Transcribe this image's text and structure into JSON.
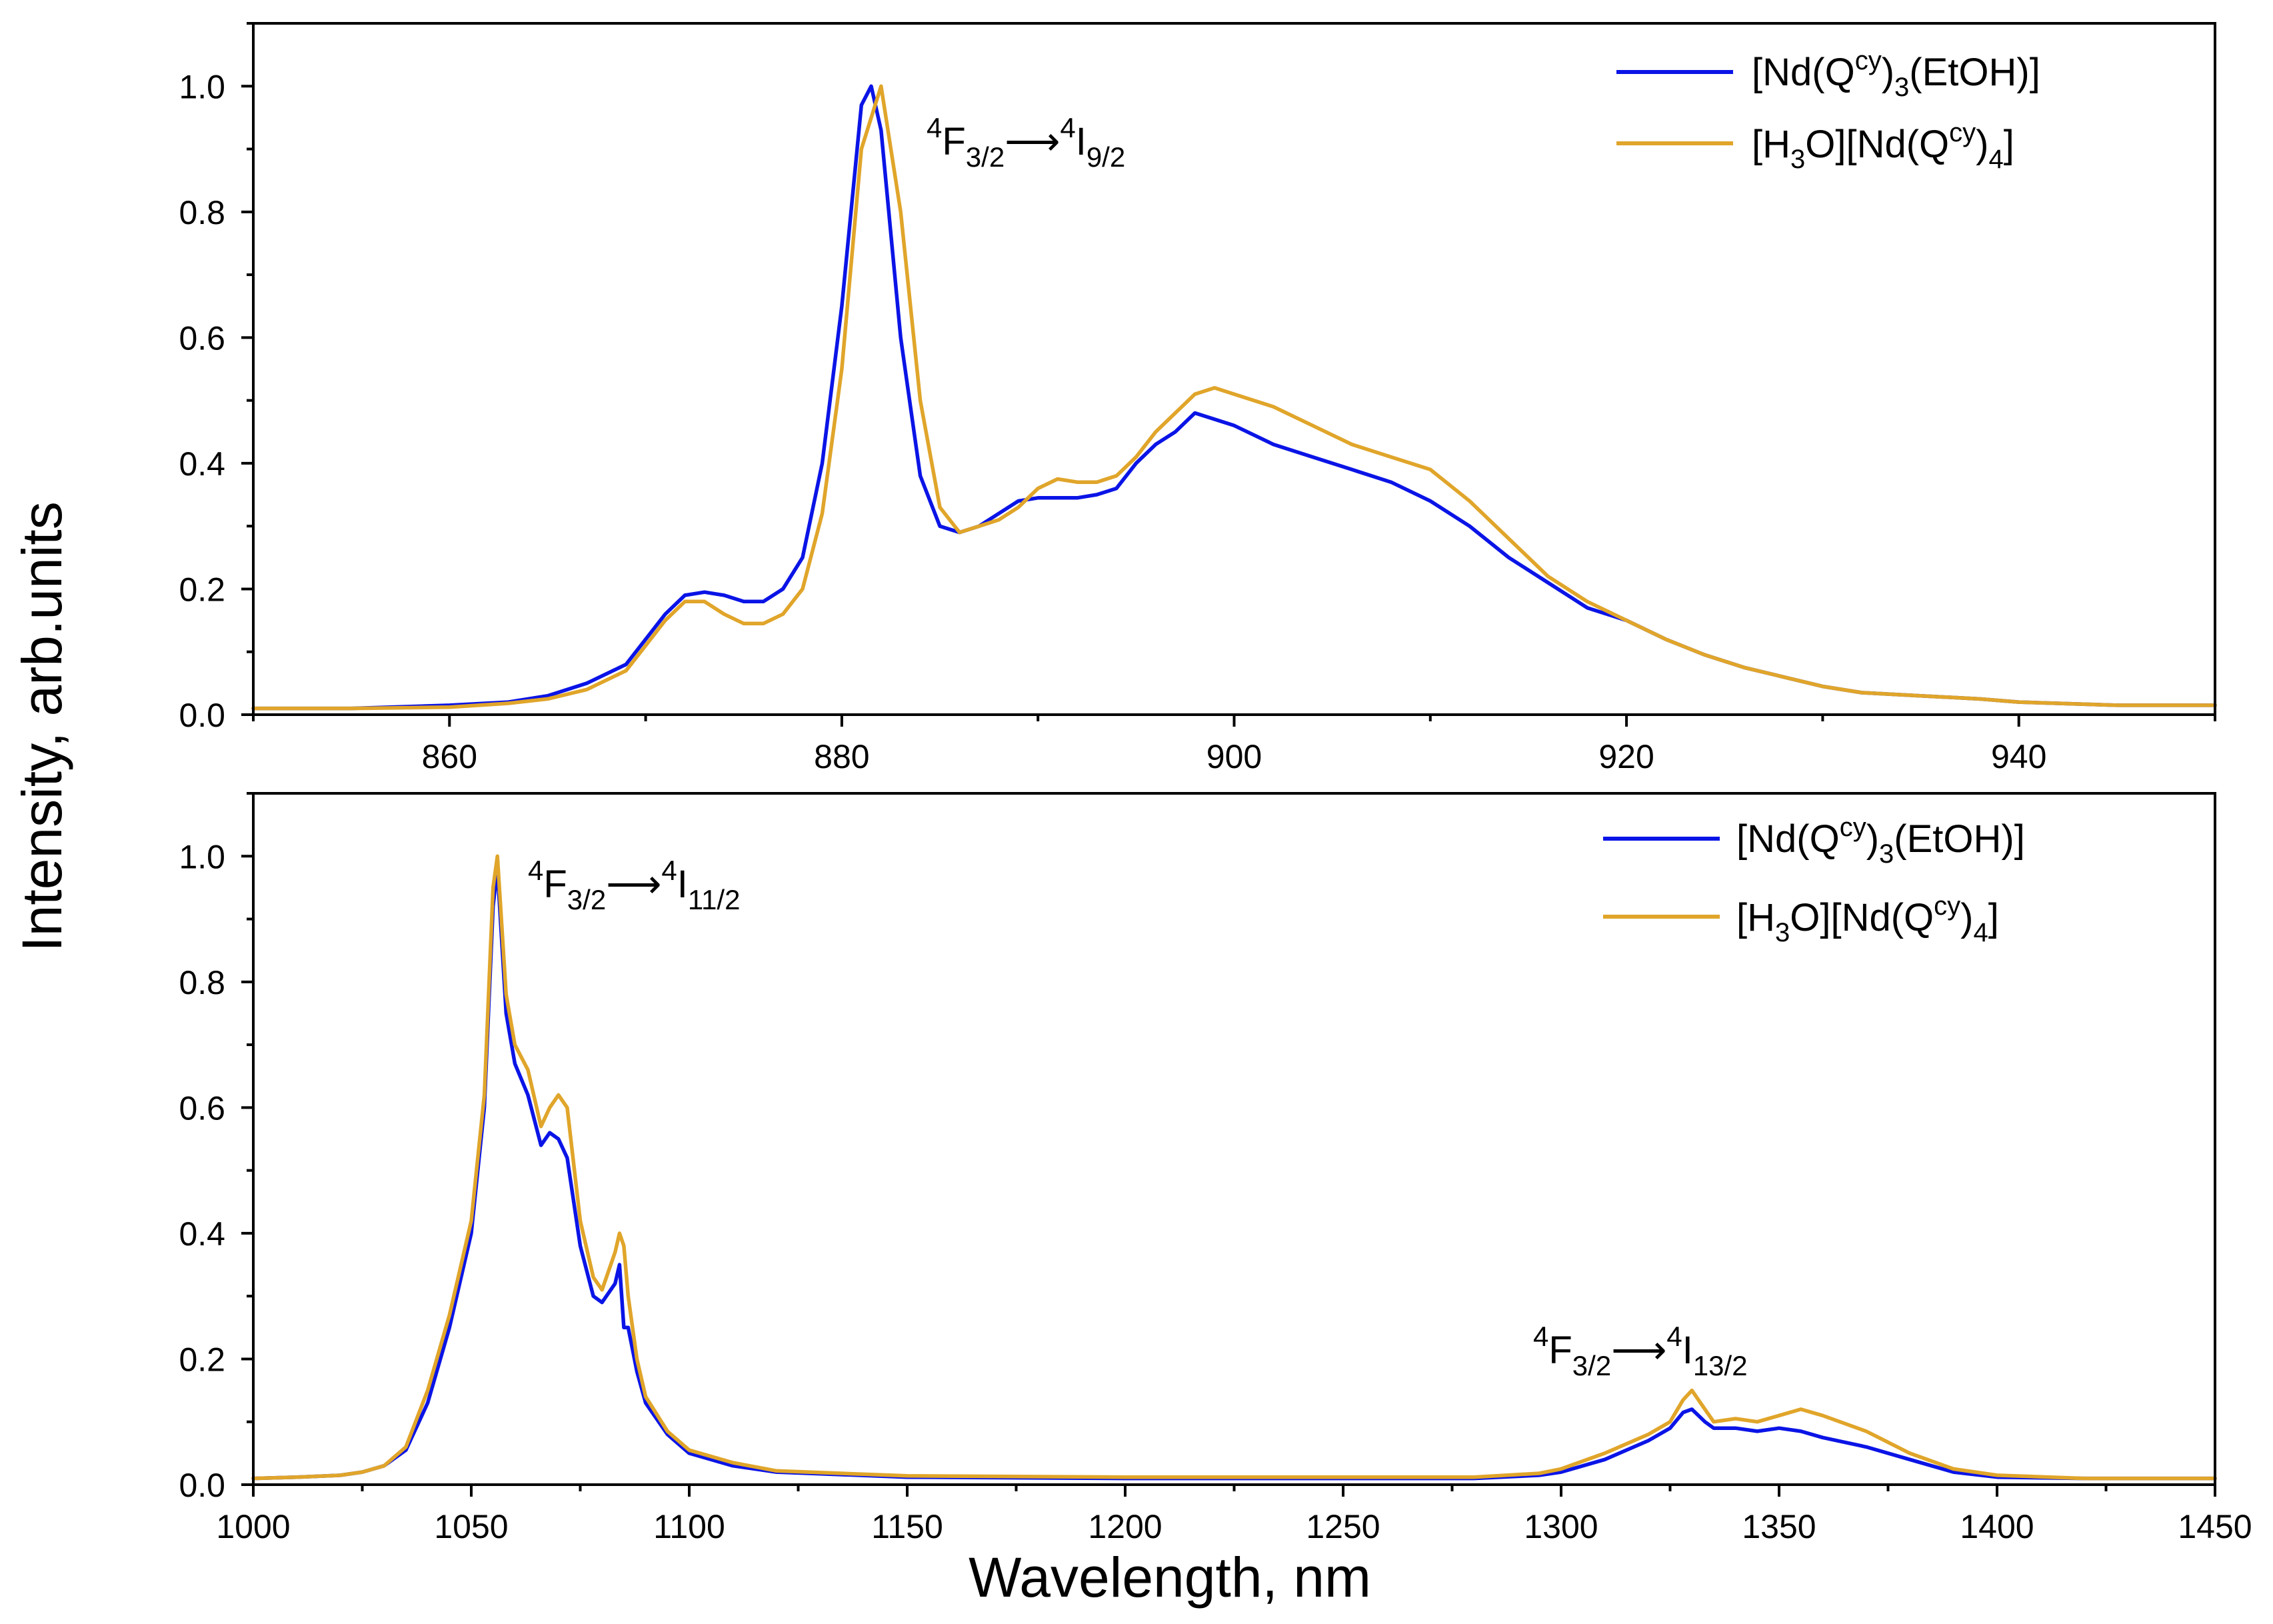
{
  "colors": {
    "series_a": "#0a14e6",
    "series_b": "#e0a52a",
    "axis": "#000000"
  },
  "ylabel": "Intensity, arb.units",
  "xlabel": "Wavelength, nm",
  "legend_labels": [
    {
      "base": "[Nd(Q",
      "sup": "cy",
      "mid": ")",
      "sub": "3",
      "tail": "(EtOH)]"
    },
    {
      "base": "[H",
      "sub": "3",
      "mid": "O][Nd(Q",
      "sup": "cy",
      "mid2": ")",
      "sub2": "4",
      "tail": "]"
    }
  ],
  "chart_data": [
    {
      "type": "line",
      "panel": "top",
      "xlim": [
        850,
        950
      ],
      "ylim": [
        0,
        1.1
      ],
      "xticks": [
        "860",
        "880",
        "900",
        "920",
        "940"
      ],
      "yticks": [
        "0.0",
        "0.2",
        "0.4",
        "0.6",
        "0.8",
        "1.0"
      ],
      "legend_position": "top-right",
      "annotations": [
        {
          "sup1": "4",
          "main1": "F",
          "sub1": "3/2",
          "arrow": "⟶",
          "sup2": "4",
          "main2": "I",
          "sub2": "9/2"
        }
      ],
      "series": [
        {
          "name": "[Nd(Qcy)3(EtOH)]",
          "x": [
            850,
            855,
            860,
            863,
            865,
            867,
            869,
            870,
            871,
            872,
            873,
            874,
            875,
            876,
            877,
            878,
            879,
            880,
            881,
            881.5,
            882,
            883,
            884,
            885,
            886,
            887,
            888,
            889,
            890,
            891,
            892,
            893,
            894,
            895,
            896,
            897,
            898,
            899,
            900,
            902,
            904,
            906,
            908,
            910,
            912,
            914,
            916,
            918,
            920,
            922,
            924,
            926,
            928,
            930,
            932,
            935,
            938,
            940,
            945,
            950
          ],
          "y": [
            0.01,
            0.01,
            0.015,
            0.02,
            0.03,
            0.05,
            0.08,
            0.12,
            0.16,
            0.19,
            0.195,
            0.19,
            0.18,
            0.18,
            0.2,
            0.25,
            0.4,
            0.65,
            0.97,
            1.0,
            0.93,
            0.6,
            0.38,
            0.3,
            0.29,
            0.3,
            0.32,
            0.34,
            0.345,
            0.345,
            0.345,
            0.35,
            0.36,
            0.4,
            0.43,
            0.45,
            0.48,
            0.47,
            0.46,
            0.43,
            0.41,
            0.39,
            0.37,
            0.34,
            0.3,
            0.25,
            0.21,
            0.17,
            0.15,
            0.12,
            0.095,
            0.075,
            0.06,
            0.045,
            0.035,
            0.03,
            0.025,
            0.02,
            0.015,
            0.015
          ]
        },
        {
          "name": "[H3O][Nd(Qcy)4]",
          "x": [
            850,
            855,
            860,
            863,
            865,
            867,
            869,
            870,
            871,
            872,
            873,
            874,
            875,
            876,
            877,
            878,
            879,
            880,
            881,
            882,
            883,
            884,
            885,
            886,
            887,
            888,
            889,
            890,
            891,
            892,
            893,
            894,
            895,
            896,
            897,
            898,
            899,
            900,
            902,
            904,
            906,
            908,
            910,
            912,
            914,
            916,
            918,
            920,
            922,
            924,
            926,
            928,
            930,
            932,
            935,
            938,
            940,
            945,
            950
          ],
          "y": [
            0.01,
            0.01,
            0.012,
            0.018,
            0.025,
            0.04,
            0.07,
            0.11,
            0.15,
            0.18,
            0.18,
            0.16,
            0.145,
            0.145,
            0.16,
            0.2,
            0.32,
            0.55,
            0.9,
            1.0,
            0.8,
            0.5,
            0.33,
            0.29,
            0.3,
            0.31,
            0.33,
            0.36,
            0.375,
            0.37,
            0.37,
            0.38,
            0.41,
            0.45,
            0.48,
            0.51,
            0.52,
            0.51,
            0.49,
            0.46,
            0.43,
            0.41,
            0.39,
            0.34,
            0.28,
            0.22,
            0.18,
            0.15,
            0.12,
            0.095,
            0.075,
            0.06,
            0.045,
            0.035,
            0.03,
            0.025,
            0.02,
            0.015,
            0.015
          ]
        }
      ]
    },
    {
      "type": "line",
      "panel": "bottom",
      "xlim": [
        1000,
        1450
      ],
      "ylim": [
        0,
        1.1
      ],
      "xticks": [
        "1000",
        "1050",
        "1100",
        "1150",
        "1200",
        "1250",
        "1300",
        "1350",
        "1400",
        "1450"
      ],
      "yticks": [
        "0.0",
        "0.2",
        "0.4",
        "0.6",
        "0.8",
        "1.0"
      ],
      "legend_position": "top-right",
      "annotations": [
        {
          "sup1": "4",
          "main1": "F",
          "sub1": "3/2",
          "arrow": "⟶",
          "sup2": "4",
          "main2": "I",
          "sub2": "11/2"
        },
        {
          "sup1": "4",
          "main1": "F",
          "sub1": "3/2",
          "arrow": "⟶",
          "sup2": "4",
          "main2": "I",
          "sub2": "13/2"
        }
      ],
      "series": [
        {
          "name": "[Nd(Qcy)3(EtOH)]",
          "x": [
            1000,
            1010,
            1020,
            1025,
            1030,
            1035,
            1040,
            1045,
            1050,
            1053,
            1055,
            1056,
            1058,
            1060,
            1063,
            1066,
            1068,
            1070,
            1072,
            1075,
            1078,
            1080,
            1083,
            1084,
            1085,
            1086,
            1088,
            1090,
            1095,
            1100,
            1110,
            1120,
            1150,
            1200,
            1250,
            1280,
            1295,
            1300,
            1310,
            1320,
            1325,
            1328,
            1330,
            1333,
            1335,
            1340,
            1345,
            1350,
            1355,
            1360,
            1370,
            1380,
            1390,
            1400,
            1420,
            1450
          ],
          "y": [
            0.01,
            0.012,
            0.015,
            0.02,
            0.03,
            0.055,
            0.13,
            0.25,
            0.4,
            0.6,
            0.92,
            0.98,
            0.75,
            0.67,
            0.62,
            0.54,
            0.56,
            0.55,
            0.52,
            0.38,
            0.3,
            0.29,
            0.32,
            0.35,
            0.25,
            0.25,
            0.18,
            0.13,
            0.08,
            0.05,
            0.03,
            0.02,
            0.012,
            0.01,
            0.01,
            0.01,
            0.015,
            0.02,
            0.04,
            0.07,
            0.09,
            0.115,
            0.12,
            0.1,
            0.09,
            0.09,
            0.085,
            0.09,
            0.085,
            0.075,
            0.06,
            0.04,
            0.02,
            0.012,
            0.01,
            0.01
          ]
        },
        {
          "name": "[H3O][Nd(Qcy)4]",
          "x": [
            1000,
            1010,
            1020,
            1025,
            1030,
            1035,
            1040,
            1045,
            1050,
            1053,
            1055,
            1056,
            1058,
            1060,
            1063,
            1066,
            1068,
            1070,
            1072,
            1075,
            1078,
            1080,
            1083,
            1084,
            1085,
            1086,
            1088,
            1090,
            1095,
            1100,
            1110,
            1120,
            1150,
            1200,
            1250,
            1280,
            1295,
            1300,
            1310,
            1320,
            1325,
            1328,
            1330,
            1333,
            1335,
            1340,
            1345,
            1350,
            1355,
            1360,
            1370,
            1380,
            1390,
            1400,
            1420,
            1450
          ],
          "y": [
            0.01,
            0.012,
            0.015,
            0.02,
            0.03,
            0.06,
            0.15,
            0.27,
            0.42,
            0.62,
            0.95,
            1.0,
            0.78,
            0.7,
            0.66,
            0.57,
            0.6,
            0.62,
            0.6,
            0.42,
            0.33,
            0.31,
            0.37,
            0.4,
            0.38,
            0.3,
            0.2,
            0.14,
            0.085,
            0.055,
            0.035,
            0.022,
            0.014,
            0.012,
            0.012,
            0.012,
            0.018,
            0.025,
            0.05,
            0.08,
            0.1,
            0.135,
            0.15,
            0.12,
            0.1,
            0.105,
            0.1,
            0.11,
            0.12,
            0.11,
            0.085,
            0.05,
            0.025,
            0.015,
            0.01,
            0.01
          ]
        }
      ]
    }
  ]
}
